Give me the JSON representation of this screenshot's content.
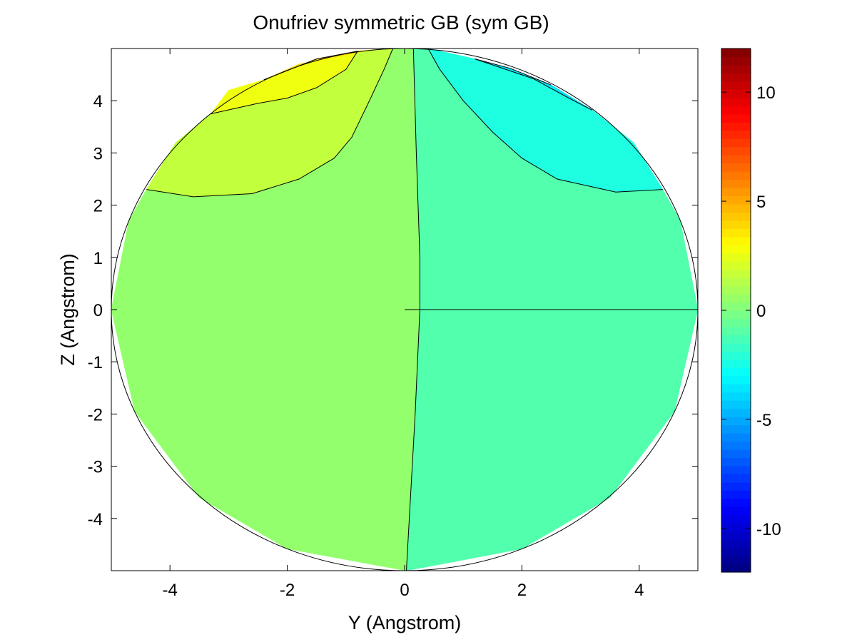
{
  "chart_data": {
    "type": "heatmap",
    "subtype": "filled-contour",
    "title": "Onufriev symmetric GB (sym GB)",
    "xlabel": "Y (Angstrom)",
    "ylabel": "Z (Angstrom)",
    "xlim": [
      -5,
      5
    ],
    "ylim": [
      -5,
      5
    ],
    "xticks": [
      "-4",
      "-2",
      "0",
      "2",
      "4"
    ],
    "xtick_values": [
      -4,
      -2,
      0,
      2,
      4
    ],
    "yticks": [
      "4",
      "3",
      "2",
      "1",
      "0",
      "-1",
      "-2",
      "-3",
      "-4"
    ],
    "ytick_values": [
      4,
      3,
      2,
      1,
      0,
      -1,
      -2,
      -3,
      -4
    ],
    "grid": false,
    "domain": "circle of radius 5 centered at (0,0)",
    "colormap": "jet",
    "colorbar": {
      "clim": [
        -12,
        12
      ],
      "ticks": [
        "10",
        "5",
        "0",
        "-5",
        "-10"
      ],
      "tick_values": [
        10,
        5,
        0,
        -5,
        -10
      ]
    },
    "regions": [
      {
        "level": 0.75,
        "color": "#93ff6c",
        "polygon": [
          [
            0.15,
            5
          ],
          [
            0.2,
            3
          ],
          [
            0.26,
            1
          ],
          [
            0.26,
            0
          ],
          [
            0.18,
            -2
          ],
          [
            0.03,
            -5
          ],
          [
            -2,
            -4.58
          ],
          [
            -3.5,
            -3.6
          ],
          [
            -4.6,
            -1.95
          ],
          [
            -5,
            0
          ],
          [
            -4.7,
            1.7
          ],
          [
            -4.4,
            2.3
          ],
          [
            -3.6,
            2.16
          ],
          [
            -2.6,
            2.22
          ],
          [
            -1.8,
            2.5
          ],
          [
            -1.2,
            2.9
          ],
          [
            -0.9,
            3.3
          ],
          [
            -0.6,
            4
          ],
          [
            -0.35,
            4.6
          ],
          [
            -0.2,
            5
          ]
        ]
      },
      {
        "level": -0.75,
        "color": "#52ffad",
        "polygon": [
          [
            0.15,
            5
          ],
          [
            0.2,
            3
          ],
          [
            0.26,
            1
          ],
          [
            0.26,
            0
          ],
          [
            0.18,
            -2
          ],
          [
            0.03,
            -5
          ],
          [
            2,
            -4.58
          ],
          [
            3.5,
            -3.6
          ],
          [
            4.6,
            -1.95
          ],
          [
            5,
            0
          ],
          [
            4.7,
            1.7
          ],
          [
            4.4,
            2.3
          ],
          [
            3.6,
            2.25
          ],
          [
            2.6,
            2.5
          ],
          [
            2,
            2.9
          ],
          [
            1.5,
            3.4
          ],
          [
            1,
            4
          ],
          [
            0.6,
            4.6
          ],
          [
            0.4,
            5
          ]
        ]
      },
      {
        "level": 2.25,
        "color": "#c2ff3d",
        "polygon": [
          [
            -4.4,
            2.3
          ],
          [
            -3.6,
            2.16
          ],
          [
            -2.6,
            2.22
          ],
          [
            -1.8,
            2.5
          ],
          [
            -1.2,
            2.9
          ],
          [
            -0.9,
            3.3
          ],
          [
            -0.6,
            4
          ],
          [
            -0.35,
            4.6
          ],
          [
            -0.2,
            5
          ],
          [
            -0.8,
            4.95
          ],
          [
            -1,
            4.6
          ],
          [
            -1.5,
            4.25
          ],
          [
            -2,
            4.05
          ],
          [
            -2.5,
            3.95
          ],
          [
            -3.3,
            3.75
          ],
          [
            -3.9,
            3.2
          ]
        ]
      },
      {
        "level": 3.75,
        "color": "#f0ff0f",
        "polygon": [
          [
            -3.3,
            3.75
          ],
          [
            -2.5,
            3.95
          ],
          [
            -2,
            4.05
          ],
          [
            -1.5,
            4.25
          ],
          [
            -1,
            4.6
          ],
          [
            -0.8,
            4.95
          ],
          [
            -1.5,
            4.8
          ],
          [
            -2.4,
            4.4
          ],
          [
            -3,
            4.2
          ]
        ]
      },
      {
        "level": 5.25,
        "color": "#ffd200",
        "polygon": [
          [
            -2.4,
            4.4
          ],
          [
            -1.5,
            4.8
          ],
          [
            -0.8,
            4.95
          ],
          [
            -0.5,
            4.98
          ],
          [
            -0.7,
            4.95
          ],
          [
            -1.8,
            4.7
          ]
        ]
      },
      {
        "level": -2.25,
        "color": "#1effe1",
        "polygon": [
          [
            4.4,
            2.3
          ],
          [
            3.6,
            2.25
          ],
          [
            2.6,
            2.5
          ],
          [
            2,
            2.9
          ],
          [
            1.5,
            3.4
          ],
          [
            1,
            4
          ],
          [
            0.6,
            4.6
          ],
          [
            0.4,
            5
          ],
          [
            1.2,
            4.8
          ],
          [
            2.2,
            4.42
          ],
          [
            2.8,
            4.05
          ],
          [
            3.2,
            3.82
          ],
          [
            3.9,
            3.2
          ]
        ]
      },
      {
        "level": -3.75,
        "color": "#00e6ff",
        "polygon": [
          [
            1.2,
            4.8
          ],
          [
            2.2,
            4.42
          ],
          [
            2.8,
            4.05
          ],
          [
            3.2,
            3.82
          ],
          [
            2.5,
            4.3
          ],
          [
            1.8,
            4.62
          ]
        ]
      }
    ],
    "contour_lines": [
      [
        [
          0.15,
          5
        ],
        [
          0.2,
          3
        ],
        [
          0.26,
          1
        ],
        [
          0.26,
          0
        ],
        [
          0.18,
          -2
        ],
        [
          0.03,
          -5
        ]
      ],
      [
        [
          0,
          0
        ],
        [
          5,
          0
        ]
      ],
      [
        [
          -4.4,
          2.3
        ],
        [
          -3.6,
          2.16
        ],
        [
          -2.6,
          2.22
        ],
        [
          -1.8,
          2.5
        ],
        [
          -1.2,
          2.9
        ],
        [
          -0.9,
          3.3
        ],
        [
          -0.6,
          4
        ],
        [
          -0.35,
          4.6
        ],
        [
          -0.2,
          5
        ]
      ],
      [
        [
          -3.3,
          3.75
        ],
        [
          -2.5,
          3.95
        ],
        [
          -2,
          4.05
        ],
        [
          -1.5,
          4.25
        ],
        [
          -1,
          4.6
        ],
        [
          -0.8,
          4.95
        ]
      ],
      [
        [
          -2.4,
          4.4
        ],
        [
          -1.5,
          4.8
        ],
        [
          -0.8,
          4.95
        ]
      ],
      [
        [
          4.4,
          2.3
        ],
        [
          3.6,
          2.25
        ],
        [
          2.6,
          2.5
        ],
        [
          2,
          2.9
        ],
        [
          1.5,
          3.4
        ],
        [
          1,
          4
        ],
        [
          0.6,
          4.6
        ],
        [
          0.4,
          5
        ]
      ],
      [
        [
          3.2,
          3.82
        ],
        [
          2.8,
          4.05
        ],
        [
          2.2,
          4.42
        ],
        [
          1.2,
          4.8
        ]
      ],
      [
        [
          2.5,
          4.3
        ],
        [
          1.8,
          4.62
        ],
        [
          1.2,
          4.8
        ]
      ]
    ]
  }
}
